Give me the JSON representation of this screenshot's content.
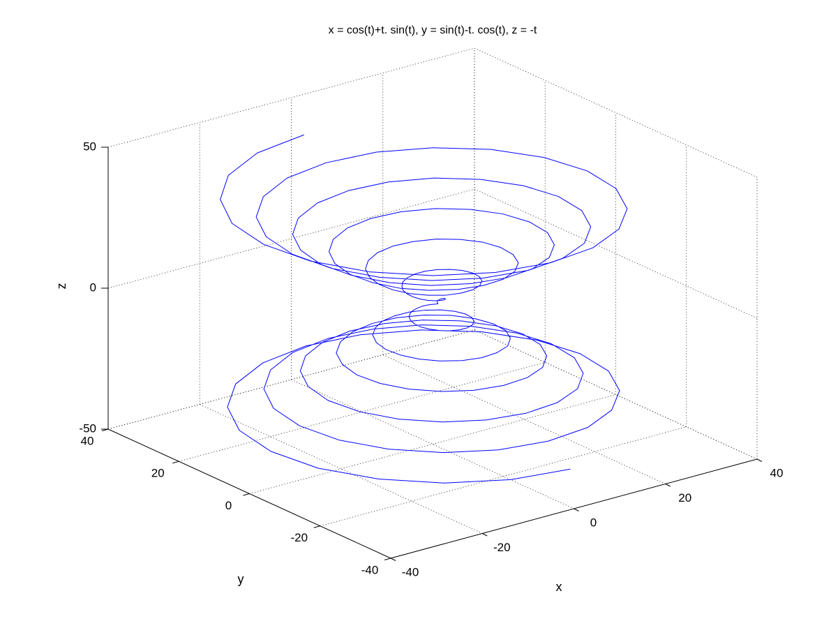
{
  "chart_data": {
    "type": "line3d",
    "title": "x = cos(t)+t. sin(t), y = sin(t)-t. cos(t), z = -t",
    "xlabel": "x",
    "ylabel": "y",
    "zlabel": "z",
    "color": "#0000ff",
    "grid": true,
    "xlim": [
      -40,
      40
    ],
    "ylim": [
      -40,
      40
    ],
    "zlim": [
      -50,
      50
    ],
    "xticks": [
      -40,
      -20,
      0,
      20,
      40
    ],
    "yticks": [
      -40,
      -20,
      0,
      20,
      40
    ],
    "zticks": [
      -50,
      0,
      50
    ],
    "x": [
      1,
      -10.6,
      -21,
      -29.1,
      -34.4,
      -36.1,
      -34.4,
      -29.3,
      -21.5,
      -11.7,
      -1,
      9.6,
      19.1,
      26.6,
      31.4,
      33,
      31.4,
      26.8,
      19.6,
      10.8,
      1,
      -8.7,
      -17.3,
      -24.1,
      -28.4,
      -29.8,
      -28.4,
      -24.2,
      -17.8,
      -9.8,
      -1,
      7.7,
      15.4,
      21.5,
      25.4,
      26.7,
      25.4,
      21.7,
      16,
      8.8,
      1,
      -6.7,
      -13.6,
      -19,
      -22.4,
      -23.6,
      -22.4,
      -19.1,
      -14.1,
      -7.8,
      -1,
      5.7,
      11.7,
      16.4,
      19.4,
      20.4,
      19.4,
      16.6,
      12.3,
      6.9,
      1,
      -4.8,
      -9.9,
      -13.9,
      -16.4,
      -17.3,
      -16.4,
      -14.1,
      -10.4,
      -5.9,
      -1,
      3.8,
      8.1,
      11.4,
      13.4,
      14.1,
      13.5,
      11.5,
      8.6,
      4.9,
      1,
      -2.8,
      -6.2,
      -8.8,
      -10.4,
      -11,
      -10.5,
      -9,
      -6.7,
      -4,
      -1,
      1.9,
      4.4,
      6.3,
      7.5,
      7.9,
      7.5,
      6.4,
      4.9,
      3,
      1,
      -0.9,
      -2.5,
      -3.7,
      -4.5,
      -4.7,
      -4.5,
      -3.9,
      -3,
      -2,
      -1,
      -0.1,
      0.7,
      1.2,
      1.5,
      1.6,
      1.5,
      1.4,
      1.2,
      1,
      1,
      1,
      1.2,
      1.4,
      1.5,
      1.6,
      1.5,
      1.2,
      0.7,
      -0.1,
      -1,
      -2,
      -3,
      -3.9,
      -4.5,
      -4.7,
      -4.5,
      -3.7,
      -2.5,
      -0.9,
      1,
      3,
      4.9,
      6.4,
      7.5,
      7.9,
      7.5,
      6.3,
      4.4,
      1.9,
      -1,
      -4,
      -6.7,
      -9,
      -10.5,
      -11,
      -10.4,
      -8.8,
      -6.2,
      -2.8,
      1,
      4.9,
      8.6,
      11.5,
      13.5,
      14.1,
      13.4,
      11.4,
      8.1,
      3.8,
      -1,
      -5.9,
      -10.4,
      -14.1,
      -16.4,
      -17.3,
      -16.4,
      -13.9,
      -9.9,
      -4.8,
      1,
      6.9,
      12.3,
      16.6,
      19.4,
      20.4,
      19.4,
      16.4,
      11.7,
      5.7,
      -1,
      -7.8,
      -14.1,
      -19.1,
      -22.4,
      -23.6,
      -22.4,
      -19,
      -13.6,
      -6.7,
      1,
      8.8,
      16,
      21.7,
      25.4,
      26.7,
      25.4,
      21.5,
      15.4,
      7.7,
      -1,
      -9.8,
      -17.8,
      -24.2,
      -28.4,
      -29.8,
      -28.4,
      -24.1,
      -17.3,
      -8.7,
      1,
      10.8,
      19.6,
      26.8,
      31.4,
      33,
      31.4,
      26.6,
      19.1,
      9.6,
      -1,
      -11.7,
      -21.5,
      -29.3,
      -34.4,
      -36.1,
      -34.4,
      -29.1,
      -21,
      -10.6,
      1
    ],
    "y": [
      37.7,
      35.9,
      30.6,
      22.4,
      12.2,
      1,
      -10.1,
      -20.1,
      -27.9,
      -32.9,
      -34.6,
      -32.9,
      -28,
      -20.6,
      -11.2,
      -1,
      9.1,
      18.2,
      25.3,
      29.9,
      31.4,
      29.9,
      25.5,
      18.7,
      10.3,
      1,
      -8.2,
      -16.4,
      -22.8,
      -26.9,
      -28.3,
      -26.9,
      -23,
      -16.9,
      -9.3,
      -1,
      7.2,
      14.5,
      20.3,
      23.9,
      25.1,
      23.9,
      20.4,
      15,
      8.3,
      1,
      -6.2,
      -12.7,
      -17.7,
      -20.9,
      -22,
      -20.9,
      -17.9,
      -13.2,
      -7.4,
      -1,
      5.3,
      10.8,
      15.2,
      17.9,
      18.8,
      17.9,
      15.3,
      11.3,
      6.4,
      1,
      -4.3,
      -9,
      -12.6,
      -14.9,
      -15.7,
      -15,
      -12.8,
      -9.5,
      -5.4,
      -1,
      3.3,
      7.1,
      10.1,
      11.9,
      12.6,
      12,
      10.2,
      7.6,
      4.4,
      1,
      -2.3,
      -5.3,
      -7.5,
      -9,
      -9.4,
      -9,
      -7.7,
      -5.8,
      -3.5,
      -1,
      1.4,
      3.4,
      5,
      6,
      6.3,
      6,
      5.2,
      3.9,
      2.5,
      1,
      -0.4,
      -1.6,
      -2.5,
      -3,
      -3.1,
      -3,
      -2.6,
      -2.1,
      -1.5,
      -1,
      -0.6,
      -0.3,
      -0.1,
      0,
      0,
      0,
      0.1,
      0.3,
      0.6,
      1,
      1.5,
      2.1,
      2.6,
      3,
      3.1,
      3,
      2.5,
      1.6,
      0.4,
      -1,
      -2.5,
      -3.9,
      -5.2,
      -6,
      -6.3,
      -6,
      -5,
      -3.4,
      -1.4,
      1,
      3.5,
      5.8,
      7.7,
      9,
      9.4,
      9,
      7.5,
      5.3,
      2.3,
      -1,
      -4.4,
      -7.6,
      -10.2,
      -12,
      -12.6,
      -11.9,
      -10.1,
      -7.1,
      -3.3,
      1,
      5.4,
      9.5,
      12.8,
      15,
      15.7,
      14.9,
      12.6,
      9,
      4.3,
      -1,
      -6.4,
      -11.3,
      -15.3,
      -17.9,
      -18.8,
      -17.9,
      -15.2,
      -10.8,
      -5.3,
      1,
      7.4,
      13.2,
      17.9,
      20.9,
      22,
      20.9,
      17.7,
      12.7,
      6.2,
      -1,
      -8.3,
      -15,
      -20.4,
      -23.9,
      -25.1,
      -23.9,
      -20.3,
      -14.5,
      -7.2,
      1,
      9.3,
      16.9,
      23,
      26.9,
      28.3,
      26.9,
      22.8,
      16.4,
      8.2,
      -1,
      -10.3,
      -18.7,
      -25.5,
      -29.9,
      -31.4,
      -29.9,
      -25.3,
      -18.2,
      -9.1,
      1,
      11.2,
      20.6,
      28,
      32.9,
      34.6,
      32.9,
      27.9,
      20.1,
      10.1,
      -1,
      -12.2,
      -22.4,
      -30.6,
      -35.9,
      -37.7
    ],
    "z": [
      37.7,
      37.39,
      37.07,
      36.76,
      36.44,
      36.13,
      35.81,
      35.5,
      35.19,
      34.87,
      34.56,
      34.24,
      33.93,
      33.62,
      33.3,
      32.99,
      32.67,
      32.36,
      32.04,
      31.73,
      31.42,
      31.1,
      30.79,
      30.47,
      30.16,
      29.85,
      29.53,
      29.22,
      28.9,
      28.59,
      28.27,
      27.96,
      27.65,
      27.33,
      27.02,
      26.7,
      26.39,
      26.08,
      25.76,
      25.45,
      25.13,
      24.82,
      24.5,
      24.19,
      23.88,
      23.56,
      23.25,
      22.93,
      22.62,
      22.31,
      21.99,
      21.68,
      21.36,
      21.05,
      20.73,
      20.42,
      20.11,
      19.79,
      19.48,
      19.16,
      18.85,
      18.54,
      18.22,
      17.91,
      17.59,
      17.28,
      16.96,
      16.65,
      16.34,
      16.02,
      15.71,
      15.39,
      15.08,
      14.77,
      14.45,
      14.14,
      13.82,
      13.51,
      13.19,
      12.88,
      12.57,
      12.25,
      11.94,
      11.62,
      11.31,
      11,
      10.68,
      10.37,
      10.05,
      9.74,
      9.42,
      9.11,
      8.8,
      8.48,
      8.17,
      7.85,
      7.54,
      7.23,
      6.91,
      6.6,
      6.28,
      5.97,
      5.65,
      5.34,
      5.03,
      4.71,
      4.4,
      4.08,
      3.77,
      3.46,
      3.14,
      2.83,
      2.51,
      2.2,
      1.88,
      1.57,
      1.26,
      0.94,
      0.63,
      0.31,
      0,
      -0.31,
      -0.63,
      -0.94,
      -1.26,
      -1.57,
      -1.88,
      -2.2,
      -2.51,
      -2.83,
      -3.14,
      -3.46,
      -3.77,
      -4.08,
      -4.4,
      -4.71,
      -5.03,
      -5.34,
      -5.65,
      -5.97,
      -6.28,
      -6.6,
      -6.91,
      -7.23,
      -7.54,
      -7.85,
      -8.17,
      -8.48,
      -8.8,
      -9.11,
      -9.42,
      -9.74,
      -10.05,
      -10.37,
      -10.68,
      -11,
      -11.31,
      -11.62,
      -11.94,
      -12.25,
      -12.57,
      -12.88,
      -13.19,
      -13.51,
      -13.82,
      -14.14,
      -14.45,
      -14.77,
      -15.08,
      -15.39,
      -15.71,
      -16.02,
      -16.34,
      -16.65,
      -16.96,
      -17.28,
      -17.59,
      -17.91,
      -18.22,
      -18.54,
      -18.85,
      -19.16,
      -19.48,
      -19.79,
      -20.11,
      -20.42,
      -20.73,
      -21.05,
      -21.36,
      -21.68,
      -21.99,
      -22.31,
      -22.62,
      -22.93,
      -23.25,
      -23.56,
      -23.88,
      -24.19,
      -24.5,
      -24.82,
      -25.13,
      -25.45,
      -25.76,
      -26.08,
      -26.39,
      -26.7,
      -27.02,
      -27.33,
      -27.65,
      -27.96,
      -28.27,
      -28.59,
      -28.9,
      -29.22,
      -29.53,
      -29.85,
      -30.16,
      -30.47,
      -30.79,
      -31.1,
      -31.42,
      -31.73,
      -32.04,
      -32.36,
      -32.67,
      -32.99,
      -33.3,
      -33.62,
      -33.93,
      -34.24,
      -34.56,
      -34.87,
      -35.19,
      -35.5,
      -35.81,
      -36.13,
      -36.44,
      -36.76,
      -37.07,
      -37.39,
      -37.7
    ]
  }
}
